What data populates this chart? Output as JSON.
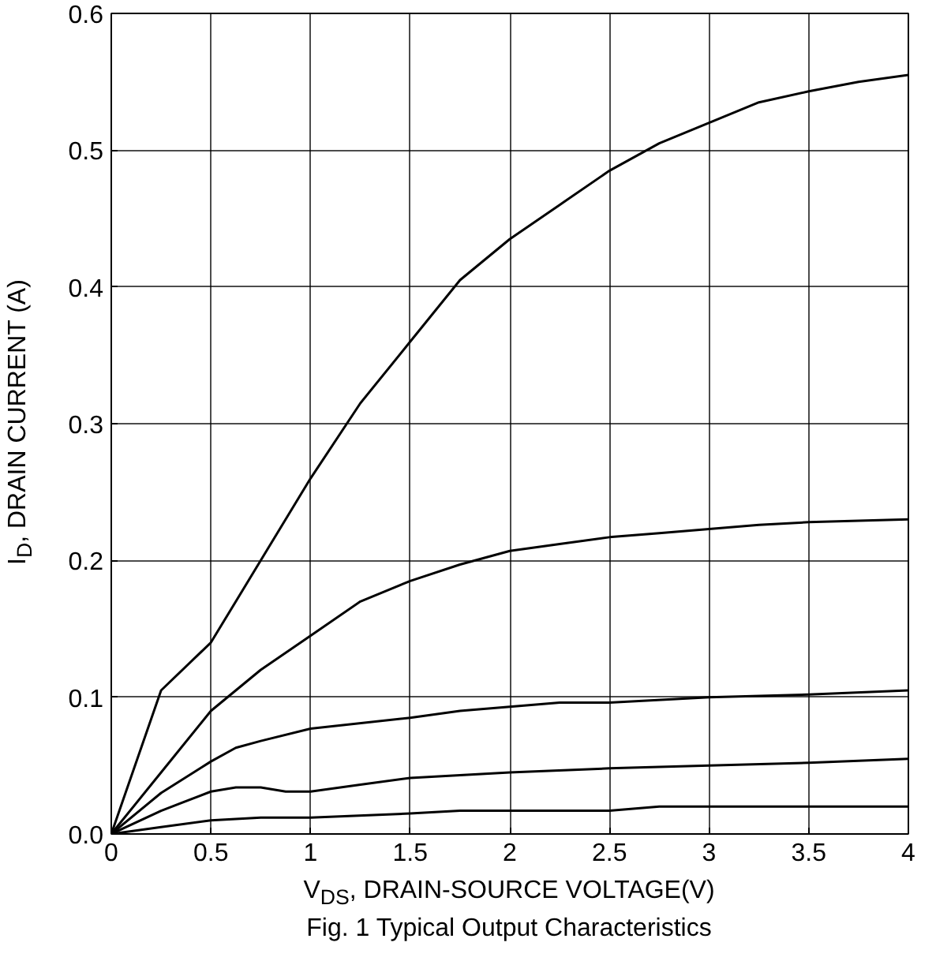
{
  "chart_data": {
    "type": "line",
    "xlabel": "V$_{DS}$, DRAIN-SOURCE VOLTAGE(V)",
    "ylabel": "I$_{D}$, DRAIN CURRENT (A)",
    "annotations": [
      "Fig. 1 Typical Output Characteristics"
    ],
    "xlim": [
      0,
      4
    ],
    "ylim": [
      0,
      0.6
    ],
    "xticks": [
      0,
      0.5,
      1,
      1.5,
      2,
      2.5,
      3,
      3.5,
      4
    ],
    "yticks": [
      {
        "value": 0,
        "label": "0.0"
      },
      0.1,
      0.2,
      0.3,
      0.4,
      0.5,
      0.6
    ],
    "grid": true,
    "marker": "none",
    "line_style": "solid",
    "series": [
      {
        "color": "#000000",
        "x": [
          0,
          0.25,
          0.5,
          0.75,
          1,
          1.25,
          1.5,
          1.75,
          2,
          2.25,
          2.5,
          2.75,
          3,
          3.25,
          3.5,
          3.75,
          4
        ],
        "values": [
          0,
          0.105,
          0.14,
          0.2,
          0.26,
          0.315,
          0.36,
          0.405,
          0.435,
          0.46,
          0.485,
          0.505,
          0.52,
          0.535,
          0.543,
          0.55,
          0.555
        ]
      },
      {
        "color": "#000000",
        "x": [
          0,
          0.25,
          0.5,
          0.75,
          1,
          1.25,
          1.5,
          1.75,
          2,
          2.25,
          2.5,
          2.75,
          3,
          3.25,
          3.5,
          4
        ],
        "values": [
          0,
          0.045,
          0.09,
          0.12,
          0.145,
          0.17,
          0.185,
          0.197,
          0.207,
          0.212,
          0.217,
          0.22,
          0.223,
          0.226,
          0.228,
          0.23
        ]
      },
      {
        "color": "#000000",
        "x": [
          0,
          0.25,
          0.5,
          0.625,
          0.75,
          1,
          1.5,
          1.75,
          2,
          2.25,
          2.5,
          3,
          3.5,
          4
        ],
        "values": [
          0,
          0.03,
          0.053,
          0.063,
          0.068,
          0.077,
          0.085,
          0.09,
          0.093,
          0.096,
          0.096,
          0.1,
          0.102,
          0.105
        ]
      },
      {
        "color": "#000000",
        "x": [
          0,
          0.25,
          0.5,
          0.625,
          0.75,
          0.875,
          1,
          1.25,
          1.5,
          2,
          2.5,
          3,
          3.5,
          4
        ],
        "values": [
          0,
          0.017,
          0.031,
          0.034,
          0.034,
          0.031,
          0.031,
          0.036,
          0.041,
          0.045,
          0.048,
          0.05,
          0.052,
          0.055
        ]
      },
      {
        "color": "#000000",
        "x": [
          0,
          0.25,
          0.5,
          0.75,
          1,
          1.5,
          1.75,
          2.5,
          2.75,
          4
        ],
        "values": [
          0,
          0.005,
          0.01,
          0.012,
          0.012,
          0.015,
          0.017,
          0.017,
          0.02,
          0.02
        ]
      }
    ]
  }
}
